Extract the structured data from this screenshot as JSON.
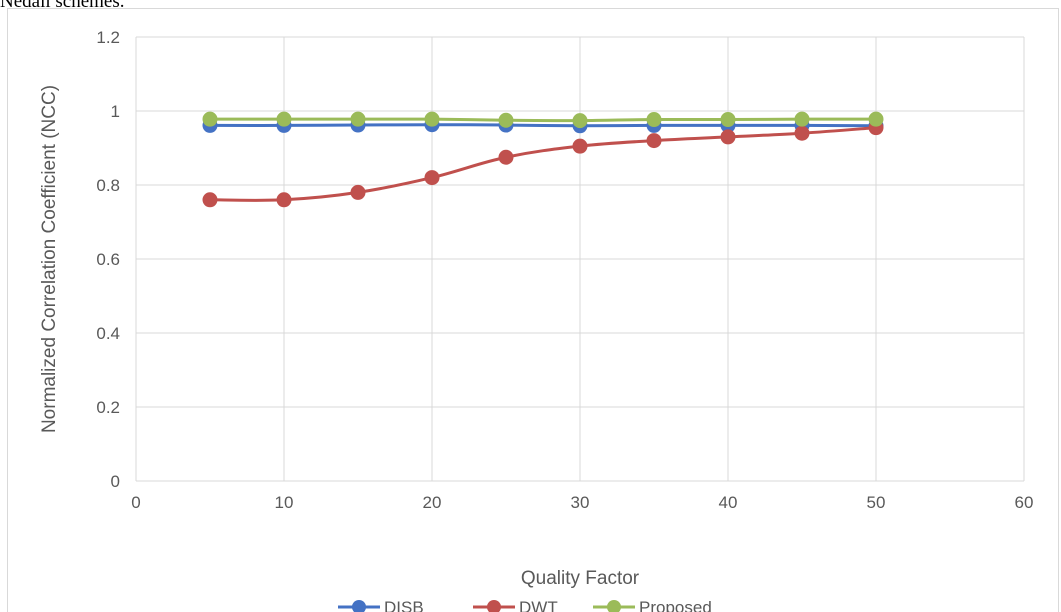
{
  "header_fragment": "Nedall schemes.",
  "chart_data": {
    "type": "line",
    "title": "",
    "xlabel": "Quality Factor",
    "ylabel": "Normalized Correlation Coefficient (NCC)",
    "xlim": [
      0,
      60
    ],
    "ylim": [
      0,
      1.2
    ],
    "xticks": [
      0,
      10,
      20,
      30,
      40,
      50,
      60
    ],
    "yticks": [
      0,
      0.2,
      0.4,
      0.6,
      0.8,
      1,
      1.2
    ],
    "grid": true,
    "legend_position": "bottom",
    "x": [
      5,
      10,
      15,
      20,
      25,
      30,
      35,
      40,
      45,
      50
    ],
    "series": [
      {
        "name": "DISB",
        "color": "#4472c4",
        "values": [
          0.961,
          0.961,
          0.962,
          0.963,
          0.962,
          0.96,
          0.961,
          0.961,
          0.961,
          0.96
        ]
      },
      {
        "name": "DWT",
        "color": "#c0504d",
        "values": [
          0.76,
          0.76,
          0.78,
          0.82,
          0.875,
          0.905,
          0.92,
          0.93,
          0.94,
          0.955
        ]
      },
      {
        "name": "Proposed",
        "color": "#9bbb59",
        "values": [
          0.978,
          0.978,
          0.978,
          0.978,
          0.975,
          0.974,
          0.977,
          0.977,
          0.978,
          0.978
        ]
      }
    ]
  }
}
